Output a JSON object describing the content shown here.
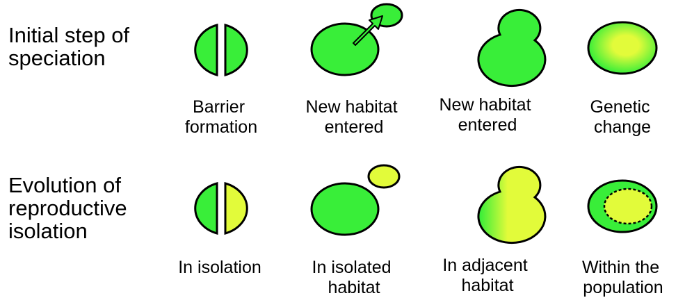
{
  "rows": [
    {
      "label": "Initial step of\nspeciation",
      "captions": [
        [
          "Barrier",
          "formation"
        ],
        [
          "New habitat",
          "entered"
        ],
        [
          "New habitat",
          "entered"
        ],
        [
          "Genetic",
          "change"
        ]
      ]
    },
    {
      "label": "Evolution of\nreproductive\nisolation",
      "captions": [
        [
          "In isolation"
        ],
        [
          "In isolated",
          "habitat"
        ],
        [
          "In adjacent",
          "habitat"
        ],
        [
          "Within the",
          "population"
        ]
      ]
    }
  ],
  "colors": {
    "population": "#39ee39",
    "diverged": "#e2fb3a",
    "outline": "#000000",
    "background": "#ffffff"
  }
}
